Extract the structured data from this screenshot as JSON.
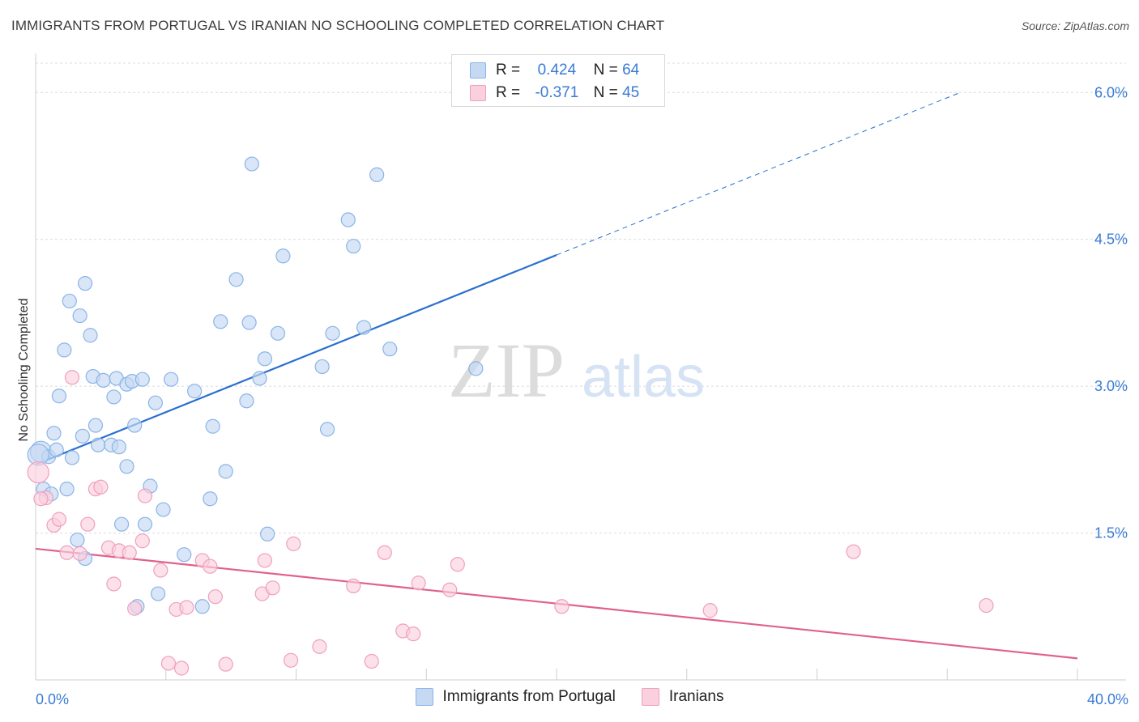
{
  "header": {
    "title": "IMMIGRANTS FROM PORTUGAL VS IRANIAN NO SCHOOLING COMPLETED CORRELATION CHART",
    "source": "Source: ZipAtlas.com"
  },
  "watermark": {
    "zip": "ZIP",
    "atlas": "atlas"
  },
  "legend": {
    "rows": [
      {
        "r_label": "R =",
        "r_value": "0.424",
        "n_label": "N =",
        "n_value": "64"
      },
      {
        "r_label": "R =",
        "r_value": "-0.371",
        "n_label": "N =",
        "n_value": "45"
      }
    ]
  },
  "chart_data": {
    "type": "scatter",
    "xlabel": "",
    "ylabel": "No Schooling Completed",
    "xlim": [
      0,
      40
    ],
    "ylim": [
      0,
      6.3
    ],
    "x_tick_labels": [
      "0.0%",
      "40.0%"
    ],
    "y_ticks": [
      1.5,
      3.0,
      4.5,
      6.0
    ],
    "y_tick_labels": [
      "1.5%",
      "3.0%",
      "4.5%",
      "6.0%"
    ],
    "grid": true,
    "legend_position": "top-center",
    "series": [
      {
        "name": "Immigrants from Portugal",
        "color": "#8ab4e8",
        "fill": "#c5d9f3",
        "trend_color": "#2b6fcf",
        "trend": {
          "x0": 0,
          "y0": 2.2,
          "x1": 20,
          "y1": 4.34,
          "x_dashed_end": 35.5,
          "y_dashed_end": 6.0
        },
        "points": [
          [
            0.2,
            2.33
          ],
          [
            0.3,
            1.95
          ],
          [
            0.5,
            2.28
          ],
          [
            0.6,
            1.9
          ],
          [
            0.7,
            2.52
          ],
          [
            0.8,
            2.35
          ],
          [
            0.9,
            2.9
          ],
          [
            1.1,
            3.37
          ],
          [
            1.2,
            1.95
          ],
          [
            1.3,
            3.87
          ],
          [
            1.4,
            2.27
          ],
          [
            1.6,
            1.43
          ],
          [
            1.7,
            3.72
          ],
          [
            1.8,
            2.49
          ],
          [
            1.9,
            4.05
          ],
          [
            1.9,
            1.24
          ],
          [
            2.1,
            3.52
          ],
          [
            2.2,
            3.1
          ],
          [
            2.3,
            2.6
          ],
          [
            2.4,
            2.4
          ],
          [
            2.6,
            3.06
          ],
          [
            2.9,
            2.4
          ],
          [
            3.0,
            2.89
          ],
          [
            3.1,
            3.08
          ],
          [
            3.2,
            2.38
          ],
          [
            3.3,
            1.59
          ],
          [
            3.5,
            2.18
          ],
          [
            3.5,
            3.02
          ],
          [
            3.7,
            3.05
          ],
          [
            3.8,
            2.6
          ],
          [
            3.9,
            0.75
          ],
          [
            4.1,
            3.07
          ],
          [
            4.2,
            1.59
          ],
          [
            4.4,
            1.98
          ],
          [
            4.6,
            2.83
          ],
          [
            4.7,
            0.88
          ],
          [
            4.9,
            1.74
          ],
          [
            5.2,
            3.07
          ],
          [
            5.7,
            1.28
          ],
          [
            6.1,
            2.95
          ],
          [
            6.4,
            0.75
          ],
          [
            6.7,
            1.85
          ],
          [
            6.8,
            2.59
          ],
          [
            7.1,
            3.66
          ],
          [
            7.3,
            2.13
          ],
          [
            7.7,
            4.09
          ],
          [
            8.1,
            2.85
          ],
          [
            8.2,
            3.65
          ],
          [
            8.3,
            5.27
          ],
          [
            8.6,
            3.08
          ],
          [
            8.8,
            3.28
          ],
          [
            8.9,
            1.49
          ],
          [
            9.3,
            3.54
          ],
          [
            9.5,
            4.33
          ],
          [
            11.0,
            3.2
          ],
          [
            11.2,
            2.56
          ],
          [
            11.4,
            3.54
          ],
          [
            12.0,
            4.7
          ],
          [
            12.2,
            4.43
          ],
          [
            12.6,
            3.6
          ],
          [
            13.1,
            5.16
          ],
          [
            13.6,
            3.38
          ],
          [
            16.9,
            3.18
          ],
          [
            0.1,
            2.3
          ]
        ]
      },
      {
        "name": "Iranians",
        "color": "#f0a0bc",
        "fill": "#fad0de",
        "trend_color": "#e0608f",
        "trend": {
          "x0": 0,
          "y0": 1.34,
          "x1": 40,
          "y1": 0.22
        },
        "points": [
          [
            0.1,
            2.12
          ],
          [
            0.4,
            1.86
          ],
          [
            0.7,
            1.58
          ],
          [
            0.9,
            1.64
          ],
          [
            1.2,
            1.3
          ],
          [
            1.4,
            3.09
          ],
          [
            1.7,
            1.29
          ],
          [
            2.0,
            1.59
          ],
          [
            2.3,
            1.95
          ],
          [
            2.5,
            1.97
          ],
          [
            2.8,
            1.35
          ],
          [
            3.0,
            0.98
          ],
          [
            3.2,
            1.32
          ],
          [
            3.6,
            1.3
          ],
          [
            3.8,
            0.73
          ],
          [
            4.1,
            1.42
          ],
          [
            4.2,
            1.88
          ],
          [
            4.8,
            1.12
          ],
          [
            5.1,
            0.17
          ],
          [
            5.4,
            0.72
          ],
          [
            5.6,
            0.12
          ],
          [
            5.8,
            0.74
          ],
          [
            6.4,
            1.22
          ],
          [
            6.7,
            1.16
          ],
          [
            6.9,
            0.85
          ],
          [
            7.3,
            0.16
          ],
          [
            8.7,
            0.88
          ],
          [
            8.8,
            1.22
          ],
          [
            9.1,
            0.94
          ],
          [
            9.8,
            0.2
          ],
          [
            9.9,
            1.39
          ],
          [
            10.9,
            0.34
          ],
          [
            12.2,
            0.96
          ],
          [
            12.9,
            0.19
          ],
          [
            13.4,
            1.3
          ],
          [
            14.1,
            0.5
          ],
          [
            14.5,
            0.47
          ],
          [
            14.7,
            0.99
          ],
          [
            15.9,
            0.92
          ],
          [
            16.2,
            1.18
          ],
          [
            20.2,
            0.75
          ],
          [
            25.9,
            0.71
          ],
          [
            31.4,
            1.31
          ],
          [
            36.5,
            0.76
          ],
          [
            0.2,
            1.85
          ]
        ]
      }
    ]
  }
}
